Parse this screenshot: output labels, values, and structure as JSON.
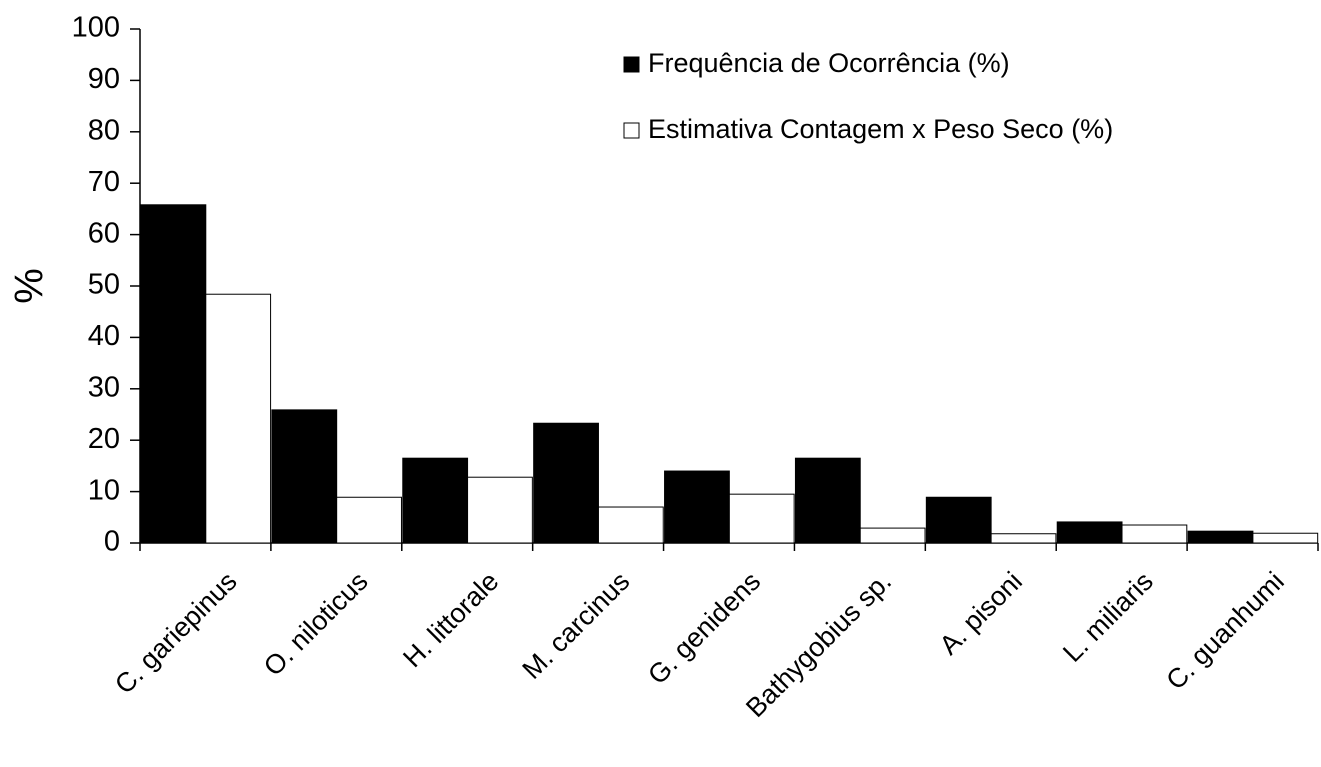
{
  "chart_data": {
    "type": "bar",
    "y_label": "%",
    "categories": [
      "C. gariepinus",
      "O. niloticus",
      "H. littorale",
      "M. carcinus",
      "G. genidens",
      "Bathygobius sp.",
      "A. pisoni",
      "L. miliaris",
      "C. guanhumi"
    ],
    "series": [
      {
        "name": "Frequência de Ocorrência (%)",
        "color": "#000000",
        "values": [
          65.8,
          25.9,
          16.5,
          23.3,
          14.0,
          16.5,
          8.9,
          4.1,
          2.3
        ]
      },
      {
        "name": "Estimativa Contagem x Peso Seco (%)",
        "color": "#ffffff",
        "values": [
          48.4,
          8.9,
          12.8,
          7.0,
          9.5,
          2.9,
          1.8,
          3.5,
          1.9
        ]
      }
    ],
    "ylim": [
      0,
      100
    ],
    "yticks": [
      0,
      10,
      20,
      30,
      40,
      50,
      60,
      70,
      80,
      90,
      100
    ],
    "grid": false,
    "legend": "upper right"
  }
}
